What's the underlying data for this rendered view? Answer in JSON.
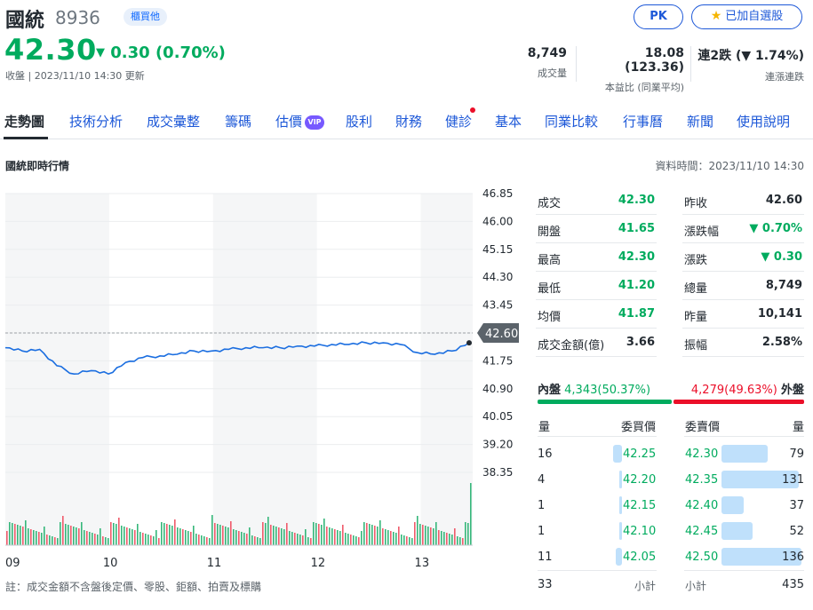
{
  "header": {
    "name": "國統",
    "code": "8936",
    "market_badge": "櫃買他",
    "pk_label": "PK",
    "fav_label": "已加自選股",
    "price": "42.30",
    "change": "0.30 (0.70%)",
    "status": "收盤 | 2023/11/10 14:30 更新",
    "stats": [
      {
        "value": "8,749",
        "label": "成交量"
      },
      {
        "value": "18.08 (123.36)",
        "label": "本益比 (同業平均)"
      },
      {
        "value": "連2跌 (▼ 1.74%)",
        "label": "連漲連跌"
      }
    ]
  },
  "tabs": [
    "走勢圖",
    "技術分析",
    "成交彙整",
    "籌碼",
    "估價",
    "股利",
    "財務",
    "健診",
    "基本",
    "同業比較",
    "行事曆",
    "新聞",
    "使用說明"
  ],
  "vip_label": "VIP",
  "section_title": "國統即時行情",
  "data_time": "資料時間：2023/11/10 14:30",
  "note": "註：成交金額不含盤後定價、零股、鉅額、拍賣及標購",
  "chart_data": {
    "type": "line",
    "x_labels": [
      "09",
      "10",
      "11",
      "12",
      "13"
    ],
    "y_ticks": [
      "46.85",
      "46.00",
      "45.15",
      "44.30",
      "43.45",
      "41.75",
      "40.90",
      "40.05",
      "39.20",
      "38.35"
    ],
    "y_range": [
      38.35,
      46.85
    ],
    "reference_price": "42.60",
    "x": [
      "09:00",
      "09:10",
      "09:20",
      "09:30",
      "09:40",
      "09:50",
      "10:00",
      "10:10",
      "10:20",
      "10:30",
      "10:40",
      "10:50",
      "11:00",
      "11:10",
      "11:20",
      "11:30",
      "11:40",
      "11:50",
      "12:00",
      "12:10",
      "12:20",
      "12:30",
      "12:40",
      "12:50",
      "13:00",
      "13:10",
      "13:20",
      "13:30"
    ],
    "y": [
      42.15,
      42.05,
      42.1,
      41.6,
      41.35,
      41.45,
      41.35,
      41.7,
      41.85,
      41.9,
      41.95,
      42.05,
      42.05,
      42.1,
      42.15,
      42.15,
      42.15,
      42.2,
      42.2,
      42.25,
      42.25,
      42.3,
      42.3,
      42.25,
      42.0,
      41.95,
      42.05,
      42.3
    ],
    "volume_note": "volume bars shown below price line"
  },
  "quote": {
    "left": [
      {
        "label": "成交",
        "value": "42.30",
        "color": "green"
      },
      {
        "label": "開盤",
        "value": "41.65",
        "color": "green"
      },
      {
        "label": "最高",
        "value": "42.30",
        "color": "green"
      },
      {
        "label": "最低",
        "value": "41.20",
        "color": "green"
      },
      {
        "label": "均價",
        "value": "41.87",
        "color": "green"
      },
      {
        "label": "成交金額(億)",
        "value": "3.66",
        "color": "dark"
      }
    ],
    "right": [
      {
        "label": "昨收",
        "value": "42.60",
        "color": "dark"
      },
      {
        "label": "漲跌幅",
        "value": "▼ 0.70%",
        "color": "green"
      },
      {
        "label": "漲跌",
        "value": "▼ 0.30",
        "color": "green"
      },
      {
        "label": "總量",
        "value": "8,749",
        "color": "dark"
      },
      {
        "label": "昨量",
        "value": "10,141",
        "color": "dark"
      },
      {
        "label": "振幅",
        "value": "2.58%",
        "color": "dark"
      }
    ]
  },
  "inner_outer": {
    "inner_label": "內盤",
    "inner_value": "4,343(50.37%)",
    "outer_value": "4,279(49.63%)",
    "outer_label": "外盤",
    "inner_fraction": 0.5037
  },
  "order_book": {
    "head_qty": "量",
    "head_bid": "委買價",
    "head_ask": "委賣價",
    "bids": [
      {
        "qty": "16",
        "price": "42.25"
      },
      {
        "qty": "4",
        "price": "42.20"
      },
      {
        "qty": "1",
        "price": "42.15"
      },
      {
        "qty": "1",
        "price": "42.10"
      },
      {
        "qty": "11",
        "price": "42.05"
      }
    ],
    "asks": [
      {
        "price": "42.30",
        "qty": "79"
      },
      {
        "price": "42.35",
        "qty": "131"
      },
      {
        "price": "42.40",
        "qty": "37"
      },
      {
        "price": "42.45",
        "qty": "52"
      },
      {
        "price": "42.50",
        "qty": "136"
      }
    ],
    "bid_total": "33",
    "subtotal_label": "小計",
    "ask_total": "435"
  }
}
